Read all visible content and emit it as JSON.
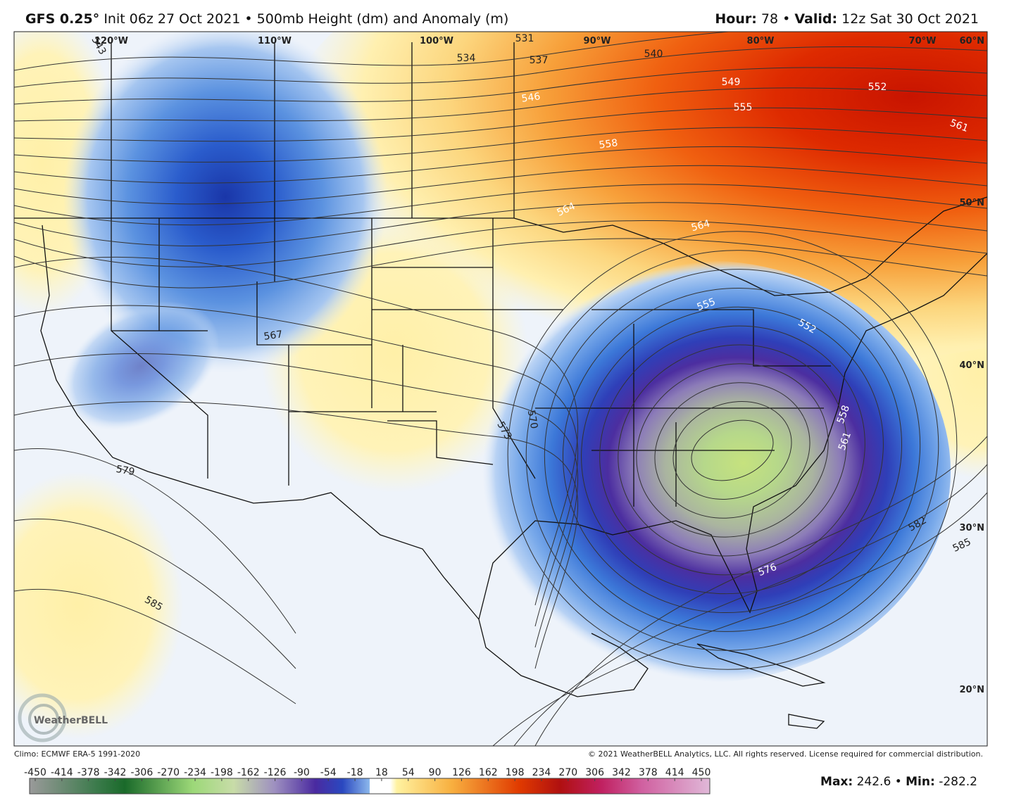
{
  "header": {
    "model": "GFS 0.25°",
    "description": "Init 06z 27 Oct 2021 • 500mb Height (dm) and Anomaly (m)",
    "hour_label": "Hour:",
    "hour": "78",
    "separator": "•",
    "valid_label": "Valid:",
    "valid": "12z Sat 30 Oct 2021"
  },
  "map": {
    "longitude_labels": [
      "120°W",
      "110°W",
      "100°W",
      "90°W",
      "80°W",
      "70°W"
    ],
    "latitude_labels": [
      "60°N",
      "50°N",
      "40°N",
      "30°N",
      "20°N"
    ],
    "contour_labels": [
      "543",
      "531",
      "534",
      "537",
      "540",
      "546",
      "549",
      "552",
      "555",
      "558",
      "561",
      "564",
      "564",
      "567",
      "570",
      "573",
      "579",
      "585",
      "555",
      "552",
      "558",
      "561",
      "576",
      "582",
      "585"
    ],
    "logo": "WeatherBELL",
    "climo": "Climo: ECMWF ERA-5 1991-2020",
    "copyright": "© 2021 WeatherBELL Analytics, LLC. All rights reserved. License required for commercial distribution."
  },
  "colorbar": {
    "ticks": [
      -450,
      -414,
      -378,
      -342,
      -306,
      -270,
      -234,
      -198,
      -162,
      -126,
      -90,
      -54,
      -18,
      18,
      54,
      90,
      126,
      162,
      198,
      234,
      270,
      306,
      342,
      378,
      414,
      450
    ]
  },
  "stats": {
    "max_label": "Max:",
    "max": "242.6",
    "separator": "•",
    "min_label": "Min:",
    "min": "-282.2"
  }
}
